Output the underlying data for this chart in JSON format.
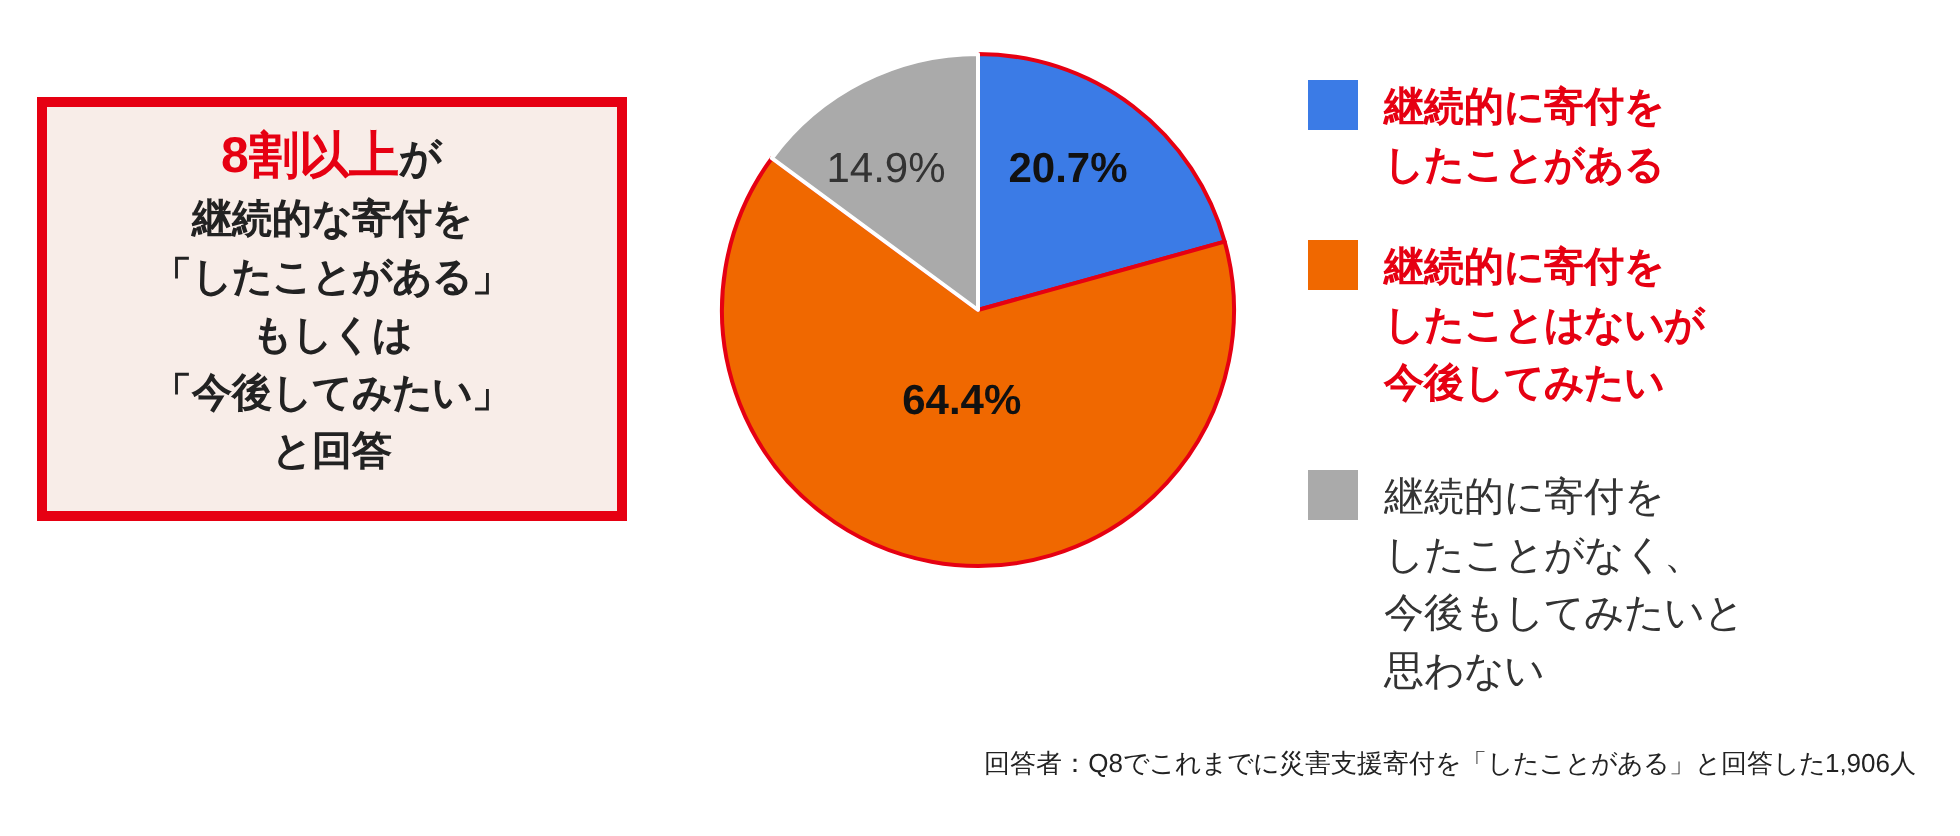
{
  "chart_data": {
    "type": "pie",
    "categories": [
      "継続的に寄付をしたことがある",
      "継続的に寄付をしたことはないが今後してみたい",
      "継続的に寄付をしたことがなく、今後もしてみたいと思わない"
    ],
    "values": [
      20.7,
      64.4,
      14.9
    ],
    "value_labels": [
      "20.7%",
      "64.4%",
      "14.9%"
    ],
    "colors": [
      "#3b7be6",
      "#f06800",
      "#aaaaaa"
    ],
    "legend": "right",
    "annotations": [
      "8割以上",
      "が継続的な寄付を「したことがある」もしくは「今後してみたい」と回答",
      "回答者：Q8でこれまでに災害支援寄付を「したことがある」と回答した1,906人"
    ]
  }
}
